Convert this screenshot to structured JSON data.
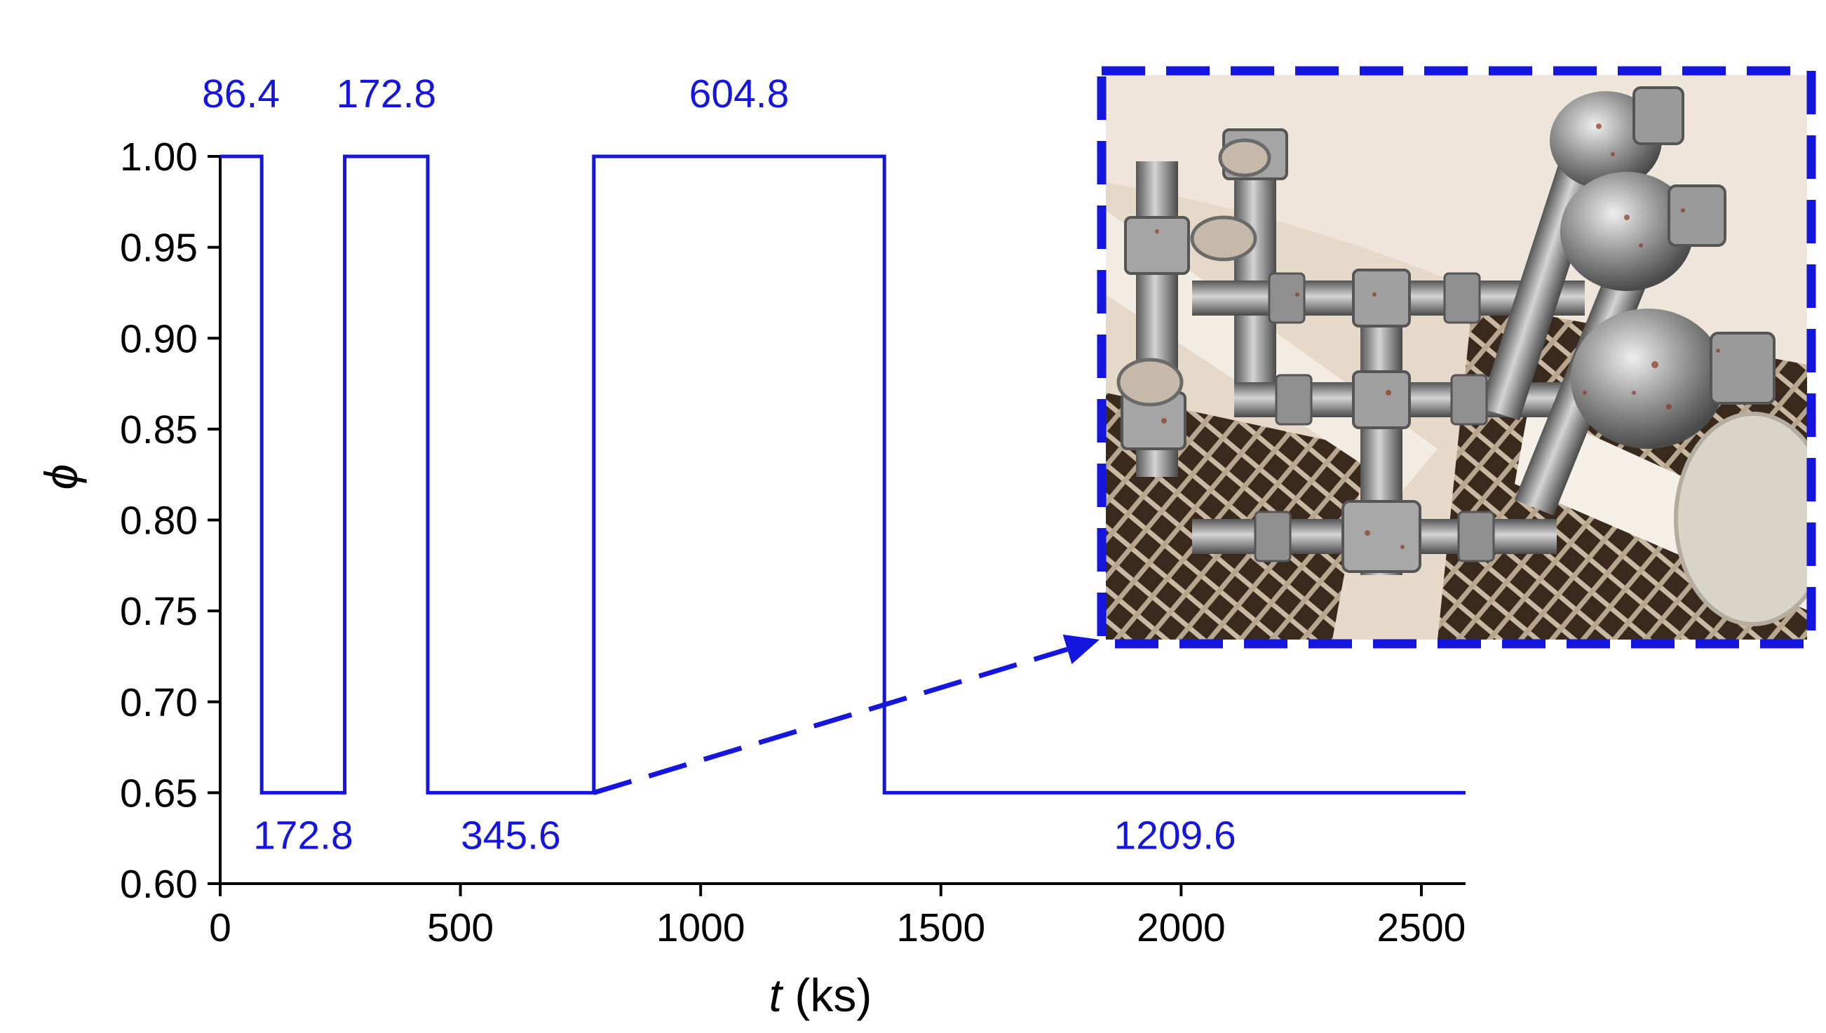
{
  "chart_data": {
    "type": "line",
    "title": "",
    "xlabel_var": "t",
    "xlabel_unit": " (ks)",
    "ylabel": "ϕ",
    "xlim": [
      0,
      2592
    ],
    "ylim": [
      0.6,
      1.0
    ],
    "xticks": [
      0,
      500,
      1000,
      1500,
      2000,
      2500
    ],
    "yticks": [
      0.6,
      0.65,
      0.7,
      0.75,
      0.8,
      0.85,
      0.9,
      0.95,
      1.0
    ],
    "series": [
      {
        "color": "#1515E0",
        "x": [
          0,
          86.4,
          86.4,
          259.2,
          259.2,
          432.0,
          432.0,
          777.6,
          777.6,
          1382.4,
          1382.4,
          2592.0
        ],
        "y": [
          1.0,
          1.0,
          0.65,
          0.65,
          1.0,
          1.0,
          0.65,
          0.65,
          1.0,
          1.0,
          0.65,
          0.65
        ]
      }
    ],
    "annotations": [
      {
        "text": "86.4",
        "x": 43.2,
        "y": 1.0,
        "position": "above"
      },
      {
        "text": "172.8",
        "x": 345.6,
        "y": 1.0,
        "position": "above"
      },
      {
        "text": "604.8",
        "x": 1080.0,
        "y": 1.0,
        "position": "above"
      },
      {
        "text": "172.8",
        "x": 172.8,
        "y": 0.65,
        "position": "below"
      },
      {
        "text": "345.6",
        "x": 604.8,
        "y": 0.65,
        "position": "below"
      },
      {
        "text": "1209.6",
        "x": 1987.2,
        "y": 0.65,
        "position": "below"
      }
    ],
    "inset": {
      "content": "photo of corroded stainless steel pipe fittings",
      "border": "dashed",
      "arrow_from": {
        "x": 777.6,
        "y": 0.65
      }
    },
    "grid": false,
    "legend": "none"
  },
  "colors": {
    "series": "#1515E0",
    "axis": "#000000"
  }
}
